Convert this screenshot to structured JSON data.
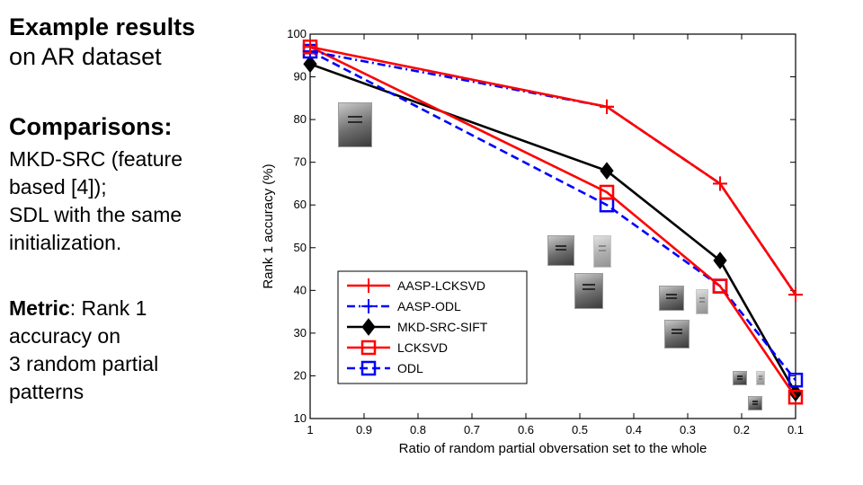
{
  "text": {
    "title": "Example results",
    "subtitle": "on AR dataset",
    "comparisons_heading": "Comparisons:",
    "comparison_line1": "MKD-SRC (feature",
    "comparison_line2": "based [4]);",
    "comparison_line3": "SDL with the same",
    "comparison_line4": "initialization.",
    "metric_label": "Metric",
    "metric_line1": ": Rank 1",
    "metric_line2": "accuracy on",
    "metric_line3": "3 random partial",
    "metric_line4": "patterns"
  },
  "chart_data": {
    "type": "line",
    "title": "",
    "xlabel": "Ratio of random partial obversation set to the whole",
    "ylabel": "Rank 1 accuracy (%)",
    "xlim": [
      1,
      0.1
    ],
    "ylim": [
      10,
      100
    ],
    "x_reversed": true,
    "xticks": [
      1,
      0.9,
      0.8,
      0.7,
      0.6,
      0.5,
      0.4,
      0.3,
      0.2,
      0.1
    ],
    "xtick_labels": [
      "1",
      "0.9",
      "0.8",
      "0.7",
      "0.6",
      "0.5",
      "0.4",
      "0.3",
      "0.2",
      "0.1"
    ],
    "yticks": [
      10,
      20,
      30,
      40,
      50,
      60,
      70,
      80,
      90,
      100
    ],
    "ytick_labels": [
      "10",
      "20",
      "30",
      "40",
      "50",
      "60",
      "70",
      "80",
      "90",
      "100"
    ],
    "grid": false,
    "legend_position": "bottom-left",
    "x": [
      1,
      0.45,
      0.24,
      0.1
    ],
    "series": [
      {
        "name": "AASP-LCKSVD",
        "values": [
          97,
          83,
          65,
          39
        ],
        "color": "#ff0000",
        "dash": "solid",
        "marker": "plus"
      },
      {
        "name": "AASP-ODL",
        "values": [
          96,
          83,
          65,
          39
        ],
        "color": "#0000ff",
        "dash": "dashdot",
        "marker": "plus"
      },
      {
        "name": "MKD-SRC-SIFT",
        "values": [
          93,
          68,
          47,
          16
        ],
        "color": "#000000",
        "dash": "solid",
        "marker": "diamond"
      },
      {
        "name": "LCKSVD",
        "values": [
          97,
          63,
          41,
          15
        ],
        "color": "#ff0000",
        "dash": "solid",
        "marker": "square"
      },
      {
        "name": "ODL",
        "values": [
          96,
          60,
          41,
          19
        ],
        "color": "#0000ff",
        "dash": "dashed",
        "marker": "square"
      }
    ]
  }
}
